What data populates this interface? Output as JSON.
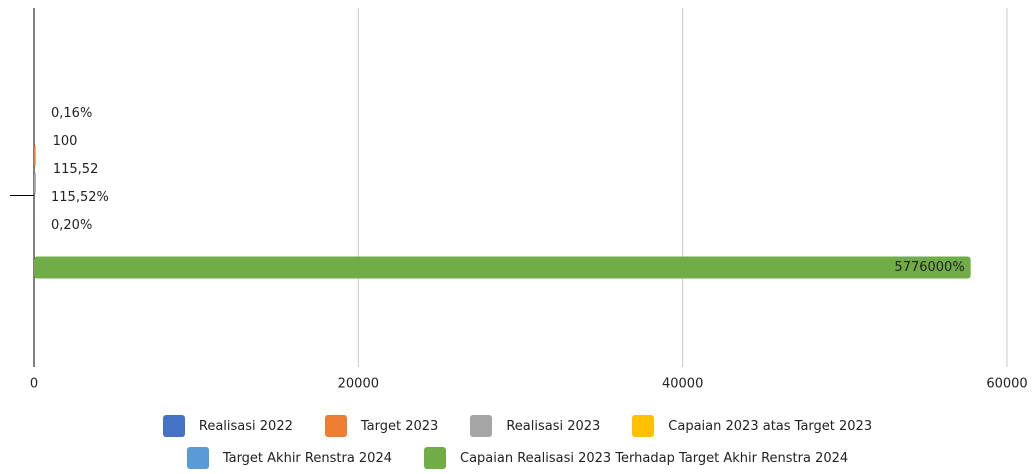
{
  "chart_data": {
    "type": "hbar",
    "categories": [
      null
    ],
    "series": [
      {
        "name": "Realisasi 2022",
        "color": "#4472c4",
        "values": [
          0.0016
        ],
        "value_labels": [
          "0,16%"
        ]
      },
      {
        "name": "Target 2023",
        "color": "#ed7d31",
        "values": [
          100
        ],
        "value_labels": [
          "100"
        ]
      },
      {
        "name": "Realisasi 2023",
        "color": "#a5a5a5",
        "values": [
          115.52
        ],
        "value_labels": [
          "115,52"
        ]
      },
      {
        "name": "Capaian 2023 atas Target 2023",
        "color": "#ffc000",
        "values": [
          1.1552
        ],
        "value_labels": [
          "115,52%"
        ]
      },
      {
        "name": "Target Akhir Renstra 2024",
        "color": "#5b9bd5",
        "values": [
          0.002
        ],
        "value_labels": [
          "0,20%"
        ]
      },
      {
        "name": "Capaian Realisasi 2023 Terhadap Target Akhir Renstra 2024",
        "color": "#70ad47",
        "values": [
          57760
        ],
        "value_labels": [
          "5776000%"
        ]
      }
    ],
    "xlim": [
      0,
      60000
    ],
    "xticks": [
      0,
      20000,
      40000,
      60000
    ],
    "grid": true,
    "legend": "bottom"
  }
}
